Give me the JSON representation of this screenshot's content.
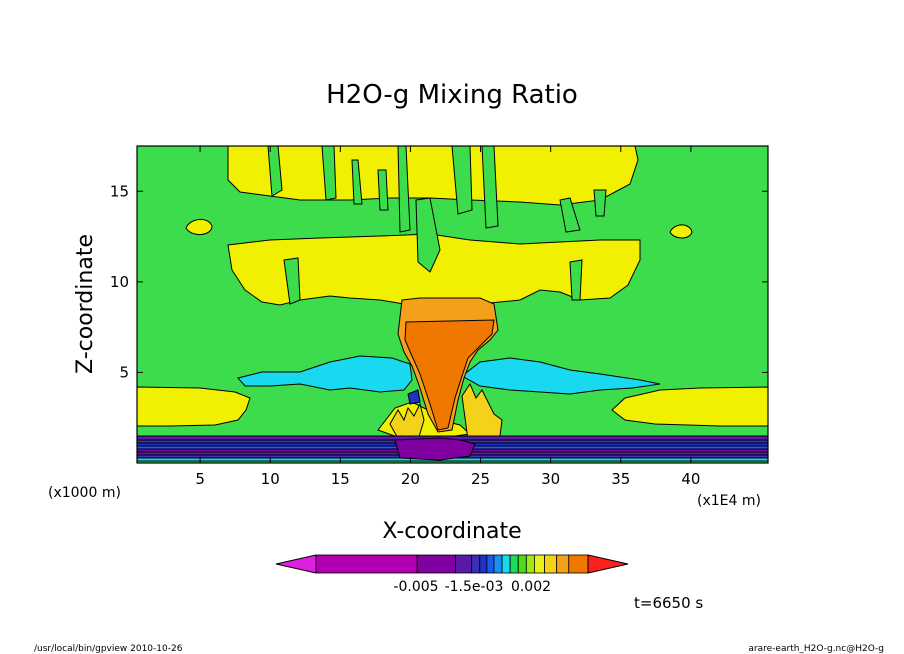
{
  "chart_data": {
    "type": "heatmap",
    "title": "H2O-g Mixing Ratio",
    "xlabel": "X-coordinate",
    "ylabel": "Z-coordinate",
    "x_tick_labels": [
      "5",
      "10",
      "15",
      "20",
      "25",
      "30",
      "35",
      "40"
    ],
    "x_ticks": [
      5,
      10,
      15,
      20,
      25,
      30,
      35,
      40
    ],
    "xlim": [
      0.5,
      45.5
    ],
    "x_unit_note": "(x1E4 m)",
    "y_tick_labels": [
      "5",
      "10",
      "15"
    ],
    "y_ticks": [
      5,
      10,
      15
    ],
    "ylim": [
      0,
      17.5
    ],
    "y_unit_note": "(x1000 m)",
    "colorbar": {
      "colors": [
        "#e020e0",
        "#b000b0",
        "#8000a0",
        "#5a1aa8",
        "#3b2fb5",
        "#2030c8",
        "#1a5af0",
        "#1a90f0",
        "#19d9f0",
        "#1edc5a",
        "#4ddc19",
        "#a0e61a",
        "#e6f01a",
        "#f5d21a",
        "#f5a01a",
        "#f07800",
        "#ff2020"
      ],
      "tick_labels": [
        "-0.005",
        "-1.5e-03",
        "0.002"
      ]
    },
    "time_label": "t=6650 s",
    "background_color": "#3ddc4c"
  },
  "footer": {
    "left": "/usr/local/bin/gpview   2010-10-26",
    "right": "arare-earth_H2O-g.nc@H2O-g"
  }
}
